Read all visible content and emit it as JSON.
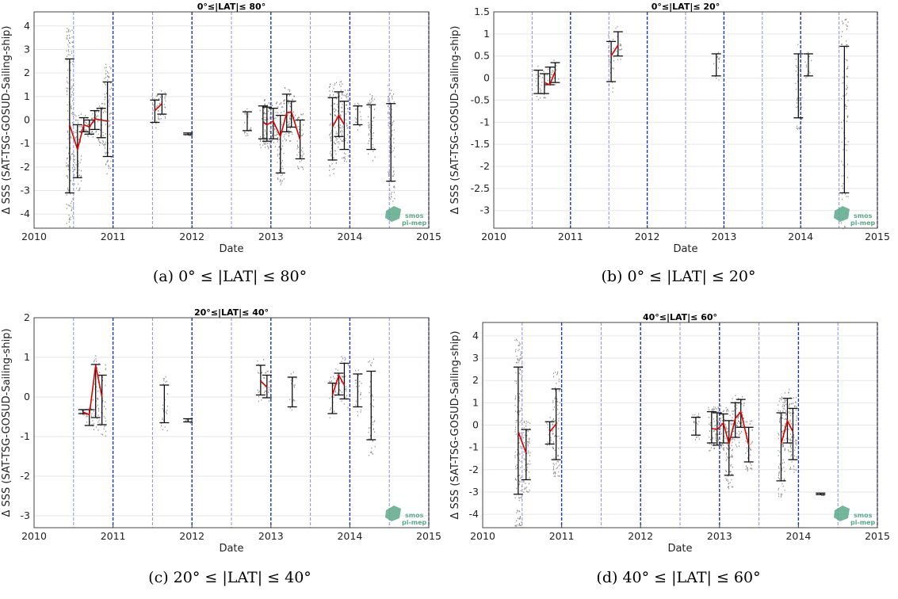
{
  "colors": {
    "median_line": "#e00000",
    "error_bar": "#111111",
    "scatter": "#8a8a8a",
    "year_line": "#1f2ed6",
    "half_year_line": "#8c8ff0",
    "grid": "#e6e6e6",
    "logo": "#5aa98a"
  },
  "logo": {
    "line1": "smos",
    "line2": "pi-mep"
  },
  "chart_data": [
    {
      "type": "errorbar",
      "title": "0°≤|LAT|≤ 80°",
      "xlabel": "Date",
      "ylabel": "Δ SSS (SAT-TSG-GOSUD-Sailing-ship)",
      "caption": "(a) 0° ≤ |LAT| ≤ 80°",
      "xlim": [
        2010,
        2015
      ],
      "ylim": [
        -4.6,
        4.6
      ],
      "x_ticks": [
        "2010",
        "2011",
        "2012",
        "2013",
        "2014",
        "2015"
      ],
      "y_ticks": [
        "-4",
        "-3",
        "-2",
        "-1",
        "0",
        "1",
        "2",
        "3",
        "4"
      ],
      "grid": true,
      "error_bars": [
        {
          "x": 2010.45,
          "low": -3.1,
          "high": 2.6
        },
        {
          "x": 2010.55,
          "low": -2.45,
          "high": -0.2
        },
        {
          "x": 2010.63,
          "low": -0.5,
          "high": 0.1
        },
        {
          "x": 2010.7,
          "low": -0.6,
          "high": 0.0
        },
        {
          "x": 2010.77,
          "low": -0.4,
          "high": 0.4
        },
        {
          "x": 2010.85,
          "low": -0.75,
          "high": 0.5
        },
        {
          "x": 2010.93,
          "low": -1.55,
          "high": 1.62
        },
        {
          "x": 2011.53,
          "low": -0.1,
          "high": 0.85
        },
        {
          "x": 2011.62,
          "low": 0.25,
          "high": 1.1
        },
        {
          "x": 2011.95,
          "low": -0.62,
          "high": -0.55
        },
        {
          "x": 2012.7,
          "low": -0.45,
          "high": 0.35
        },
        {
          "x": 2012.9,
          "low": -0.8,
          "high": 0.6
        },
        {
          "x": 2012.95,
          "low": -0.9,
          "high": 0.55
        },
        {
          "x": 2013.03,
          "low": -0.8,
          "high": 0.5
        },
        {
          "x": 2013.12,
          "low": -2.25,
          "high": 0.2
        },
        {
          "x": 2013.2,
          "low": -0.5,
          "high": 1.1
        },
        {
          "x": 2013.26,
          "low": -0.3,
          "high": 0.8
        },
        {
          "x": 2013.37,
          "low": -1.65,
          "high": 0.0
        },
        {
          "x": 2013.78,
          "low": -1.7,
          "high": 0.95
        },
        {
          "x": 2013.86,
          "low": -0.7,
          "high": 1.2
        },
        {
          "x": 2013.93,
          "low": -1.25,
          "high": 0.8
        },
        {
          "x": 2014.1,
          "low": -0.2,
          "high": 0.6
        },
        {
          "x": 2014.27,
          "low": -1.25,
          "high": 0.65
        },
        {
          "x": 2014.52,
          "low": -2.6,
          "high": 0.7
        }
      ],
      "median_segments": [
        {
          "x": [
            2010.45,
            2010.55,
            2010.63,
            2010.7,
            2010.77,
            2010.85,
            2010.93
          ],
          "y": [
            -0.2,
            -1.25,
            -0.2,
            -0.3,
            0.05,
            0.0,
            -0.05
          ]
        },
        {
          "x": [
            2011.53,
            2011.62
          ],
          "y": [
            0.4,
            0.7
          ]
        },
        {
          "x": [
            2012.9,
            2012.95,
            2013.03,
            2013.12,
            2013.2,
            2013.26,
            2013.37
          ],
          "y": [
            -0.1,
            -0.2,
            -0.05,
            -0.7,
            0.3,
            0.35,
            -0.85
          ]
        },
        {
          "x": [
            2013.78,
            2013.86,
            2013.93
          ],
          "y": [
            -0.3,
            0.2,
            -0.2
          ]
        }
      ]
    },
    {
      "type": "errorbar",
      "title": "0°≤|LAT|≤ 20°",
      "xlabel": "Date",
      "ylabel": "Δ SSS (SAT-TSG-GOSUD-Sailing-ship)",
      "caption": "(b) 0° ≤ |LAT| ≤ 20°",
      "xlim": [
        2010,
        2015
      ],
      "ylim": [
        -3.4,
        1.5
      ],
      "x_ticks": [
        "2010",
        "2011",
        "2012",
        "2013",
        "2014",
        "2015"
      ],
      "y_ticks": [
        "-3",
        "-2.5",
        "-2",
        "-1.5",
        "-1",
        "-0.5",
        "0",
        "0.5",
        "1",
        "1.5"
      ],
      "grid": true,
      "error_bars": [
        {
          "x": 2010.58,
          "low": -0.35,
          "high": 0.18
        },
        {
          "x": 2010.66,
          "low": -0.35,
          "high": 0.1
        },
        {
          "x": 2010.73,
          "low": -0.15,
          "high": 0.25
        },
        {
          "x": 2010.8,
          "low": -0.1,
          "high": 0.35
        },
        {
          "x": 2011.53,
          "low": -0.08,
          "high": 0.83
        },
        {
          "x": 2011.62,
          "low": 0.5,
          "high": 1.05
        },
        {
          "x": 2012.9,
          "low": 0.05,
          "high": 0.55
        },
        {
          "x": 2013.97,
          "low": -0.9,
          "high": 0.55
        },
        {
          "x": 2014.1,
          "low": 0.05,
          "high": 0.55
        },
        {
          "x": 2014.57,
          "low": -2.6,
          "high": 0.72
        }
      ],
      "median_segments": [
        {
          "x": [
            2010.66,
            2010.73,
            2010.8
          ],
          "y": [
            -0.1,
            -0.15,
            0.15
          ]
        },
        {
          "x": [
            2011.53,
            2011.62
          ],
          "y": [
            0.5,
            0.75
          ]
        }
      ]
    },
    {
      "type": "errorbar",
      "title": "20°≤|LAT|≤ 40°",
      "xlabel": "Date",
      "ylabel": "Δ SSS (SAT-TSG-GOSUD-Sailing-ship)",
      "caption": "(c) 20° ≤ |LAT| ≤ 40°",
      "xlim": [
        2010,
        2015
      ],
      "ylim": [
        -3.3,
        2.0
      ],
      "x_ticks": [
        "2010",
        "2011",
        "2012",
        "2013",
        "2014",
        "2015"
      ],
      "y_ticks": [
        "-3",
        "-2",
        "-1",
        "0",
        "1",
        "2"
      ],
      "grid": true,
      "error_bars": [
        {
          "x": 2010.62,
          "low": -0.42,
          "high": -0.32
        },
        {
          "x": 2010.7,
          "low": -0.72,
          "high": -0.32
        },
        {
          "x": 2010.78,
          "low": -0.52,
          "high": 0.82
        },
        {
          "x": 2010.86,
          "low": -0.7,
          "high": 0.55
        },
        {
          "x": 2011.65,
          "low": -0.65,
          "high": 0.3
        },
        {
          "x": 2011.95,
          "low": -0.63,
          "high": -0.55
        },
        {
          "x": 2012.87,
          "low": 0.05,
          "high": 0.8
        },
        {
          "x": 2012.95,
          "low": -0.02,
          "high": 0.55
        },
        {
          "x": 2013.27,
          "low": -0.25,
          "high": 0.5
        },
        {
          "x": 2013.78,
          "low": -0.42,
          "high": 0.35
        },
        {
          "x": 2013.86,
          "low": 0.05,
          "high": 0.6
        },
        {
          "x": 2013.93,
          "low": -0.05,
          "high": 0.85
        },
        {
          "x": 2014.1,
          "low": -0.25,
          "high": 0.58
        },
        {
          "x": 2014.27,
          "low": -1.08,
          "high": 0.65
        }
      ],
      "median_segments": [
        {
          "x": [
            2010.62,
            2010.7,
            2010.78,
            2010.86
          ],
          "y": [
            -0.38,
            -0.45,
            0.8,
            0.0
          ]
        },
        {
          "x": [
            2012.87,
            2012.95
          ],
          "y": [
            0.4,
            0.25
          ]
        },
        {
          "x": [
            2013.78,
            2013.86,
            2013.93
          ],
          "y": [
            0.05,
            0.55,
            0.3
          ]
        }
      ]
    },
    {
      "type": "errorbar",
      "title": "40°≤|LAT|≤ 60°",
      "xlabel": "Date",
      "ylabel": "Δ SSS (SAT-TSG-GOSUD-Sailing-ship)",
      "caption": "(d) 40° ≤ |LAT| ≤ 60°",
      "xlim": [
        2010,
        2015
      ],
      "ylim": [
        -4.6,
        4.6
      ],
      "x_ticks": [
        "2010",
        "2011",
        "2012",
        "2013",
        "2014",
        "2015"
      ],
      "y_ticks": [
        "-4",
        "-3",
        "-2",
        "-1",
        "0",
        "1",
        "2",
        "3",
        "4"
      ],
      "grid": true,
      "error_bars": [
        {
          "x": 2010.45,
          "low": -3.1,
          "high": 2.6
        },
        {
          "x": 2010.55,
          "low": -2.45,
          "high": -0.2
        },
        {
          "x": 2010.85,
          "low": -0.85,
          "high": 0.15
        },
        {
          "x": 2010.93,
          "low": -1.55,
          "high": 1.62
        },
        {
          "x": 2012.7,
          "low": -0.45,
          "high": 0.35
        },
        {
          "x": 2012.9,
          "low": -0.8,
          "high": 0.6
        },
        {
          "x": 2012.97,
          "low": -0.9,
          "high": 0.55
        },
        {
          "x": 2013.05,
          "low": -0.8,
          "high": 0.5
        },
        {
          "x": 2013.12,
          "low": -2.25,
          "high": 0.2
        },
        {
          "x": 2013.2,
          "low": -0.55,
          "high": 1.0
        },
        {
          "x": 2013.27,
          "low": -0.1,
          "high": 1.15
        },
        {
          "x": 2013.37,
          "low": -1.65,
          "high": -0.1
        },
        {
          "x": 2013.78,
          "low": -2.5,
          "high": 0.55
        },
        {
          "x": 2013.86,
          "low": -0.8,
          "high": 1.2
        },
        {
          "x": 2013.93,
          "low": -1.55,
          "high": 0.75
        },
        {
          "x": 2014.28,
          "low": -3.12,
          "high": -3.05
        }
      ],
      "median_segments": [
        {
          "x": [
            2010.45,
            2010.55
          ],
          "y": [
            -0.3,
            -1.25
          ]
        },
        {
          "x": [
            2010.85,
            2010.93
          ],
          "y": [
            -0.3,
            0.05
          ]
        },
        {
          "x": [
            2012.9,
            2012.97,
            2013.05,
            2013.12,
            2013.2,
            2013.27,
            2013.37
          ],
          "y": [
            -0.15,
            -0.2,
            0.1,
            -0.85,
            0.3,
            0.6,
            -0.9
          ]
        },
        {
          "x": [
            2013.78,
            2013.86,
            2013.93
          ],
          "y": [
            -0.85,
            0.2,
            -0.3
          ]
        }
      ]
    }
  ]
}
